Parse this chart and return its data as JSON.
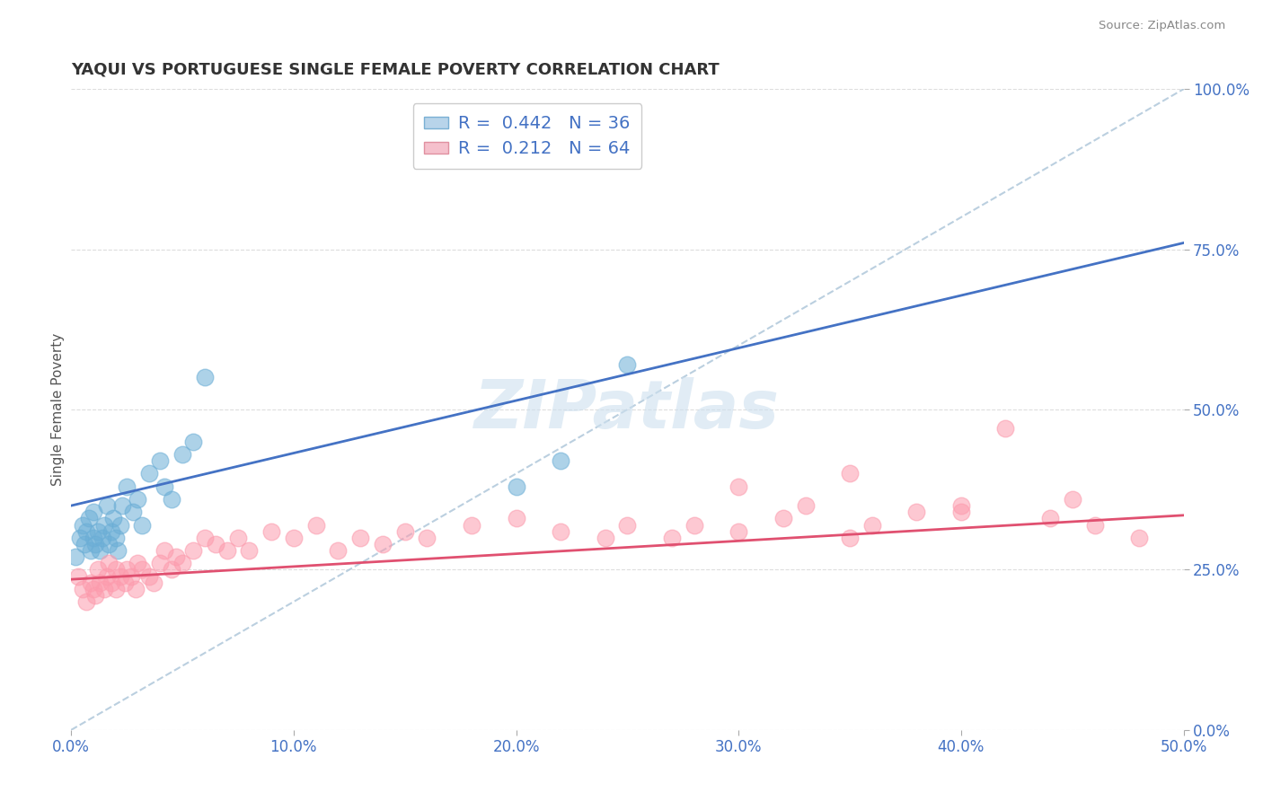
{
  "title": "YAQUI VS PORTUGUESE SINGLE FEMALE POVERTY CORRELATION CHART",
  "source_text": "Source: ZipAtlas.com",
  "ylabel": "Single Female Poverty",
  "xlim": [
    0.0,
    0.5
  ],
  "ylim": [
    0.0,
    1.0
  ],
  "xticks": [
    0.0,
    0.1,
    0.2,
    0.3,
    0.4,
    0.5
  ],
  "xticklabels": [
    "0.0%",
    "10.0%",
    "20.0%",
    "30.0%",
    "40.0%",
    "50.0%"
  ],
  "yticks_right": [
    0.0,
    0.25,
    0.5,
    0.75,
    1.0
  ],
  "yticklabels_right": [
    "0.0%",
    "25.0%",
    "50.0%",
    "75.0%",
    "100.0%"
  ],
  "yaqui_color": "#6baed6",
  "portuguese_color": "#fc9bad",
  "yaqui_line_color": "#4472c4",
  "portuguese_line_color": "#e05070",
  "ref_line_color": "#aac4d8",
  "yaqui_R": 0.442,
  "yaqui_N": 36,
  "portuguese_R": 0.212,
  "portuguese_N": 64,
  "background_color": "#ffffff",
  "grid_color": "#dddddd",
  "watermark_text": "ZIPatlas",
  "yaqui_line_x0": 0.0,
  "yaqui_line_y0": 0.35,
  "yaqui_line_x1": 0.5,
  "yaqui_line_y1": 0.76,
  "portuguese_line_x0": 0.0,
  "portuguese_line_y0": 0.235,
  "portuguese_line_x1": 0.5,
  "portuguese_line_y1": 0.335,
  "yaqui_x": [
    0.002,
    0.004,
    0.005,
    0.006,
    0.007,
    0.008,
    0.009,
    0.01,
    0.01,
    0.011,
    0.012,
    0.013,
    0.014,
    0.015,
    0.016,
    0.017,
    0.018,
    0.019,
    0.02,
    0.021,
    0.022,
    0.023,
    0.025,
    0.028,
    0.03,
    0.032,
    0.035,
    0.04,
    0.042,
    0.045,
    0.05,
    0.055,
    0.06,
    0.2,
    0.22,
    0.25
  ],
  "yaqui_y": [
    0.27,
    0.3,
    0.32,
    0.29,
    0.31,
    0.33,
    0.28,
    0.3,
    0.34,
    0.29,
    0.31,
    0.28,
    0.3,
    0.32,
    0.35,
    0.29,
    0.31,
    0.33,
    0.3,
    0.28,
    0.32,
    0.35,
    0.38,
    0.34,
    0.36,
    0.32,
    0.4,
    0.42,
    0.38,
    0.36,
    0.43,
    0.45,
    0.55,
    0.38,
    0.42,
    0.57
  ],
  "portuguese_x": [
    0.003,
    0.005,
    0.007,
    0.009,
    0.01,
    0.011,
    0.012,
    0.013,
    0.015,
    0.016,
    0.017,
    0.018,
    0.02,
    0.02,
    0.022,
    0.024,
    0.025,
    0.027,
    0.029,
    0.03,
    0.032,
    0.035,
    0.037,
    0.04,
    0.042,
    0.045,
    0.047,
    0.05,
    0.055,
    0.06,
    0.065,
    0.07,
    0.075,
    0.08,
    0.09,
    0.1,
    0.11,
    0.12,
    0.13,
    0.14,
    0.15,
    0.16,
    0.18,
    0.2,
    0.22,
    0.24,
    0.25,
    0.27,
    0.28,
    0.3,
    0.32,
    0.33,
    0.35,
    0.36,
    0.38,
    0.4,
    0.42,
    0.44,
    0.46,
    0.48,
    0.3,
    0.35,
    0.4,
    0.45
  ],
  "portuguese_y": [
    0.24,
    0.22,
    0.2,
    0.23,
    0.22,
    0.21,
    0.25,
    0.23,
    0.22,
    0.24,
    0.26,
    0.23,
    0.25,
    0.22,
    0.24,
    0.23,
    0.25,
    0.24,
    0.22,
    0.26,
    0.25,
    0.24,
    0.23,
    0.26,
    0.28,
    0.25,
    0.27,
    0.26,
    0.28,
    0.3,
    0.29,
    0.28,
    0.3,
    0.28,
    0.31,
    0.3,
    0.32,
    0.28,
    0.3,
    0.29,
    0.31,
    0.3,
    0.32,
    0.33,
    0.31,
    0.3,
    0.32,
    0.3,
    0.32,
    0.31,
    0.33,
    0.35,
    0.3,
    0.32,
    0.34,
    0.35,
    0.47,
    0.33,
    0.32,
    0.3,
    0.38,
    0.4,
    0.34,
    0.36
  ]
}
